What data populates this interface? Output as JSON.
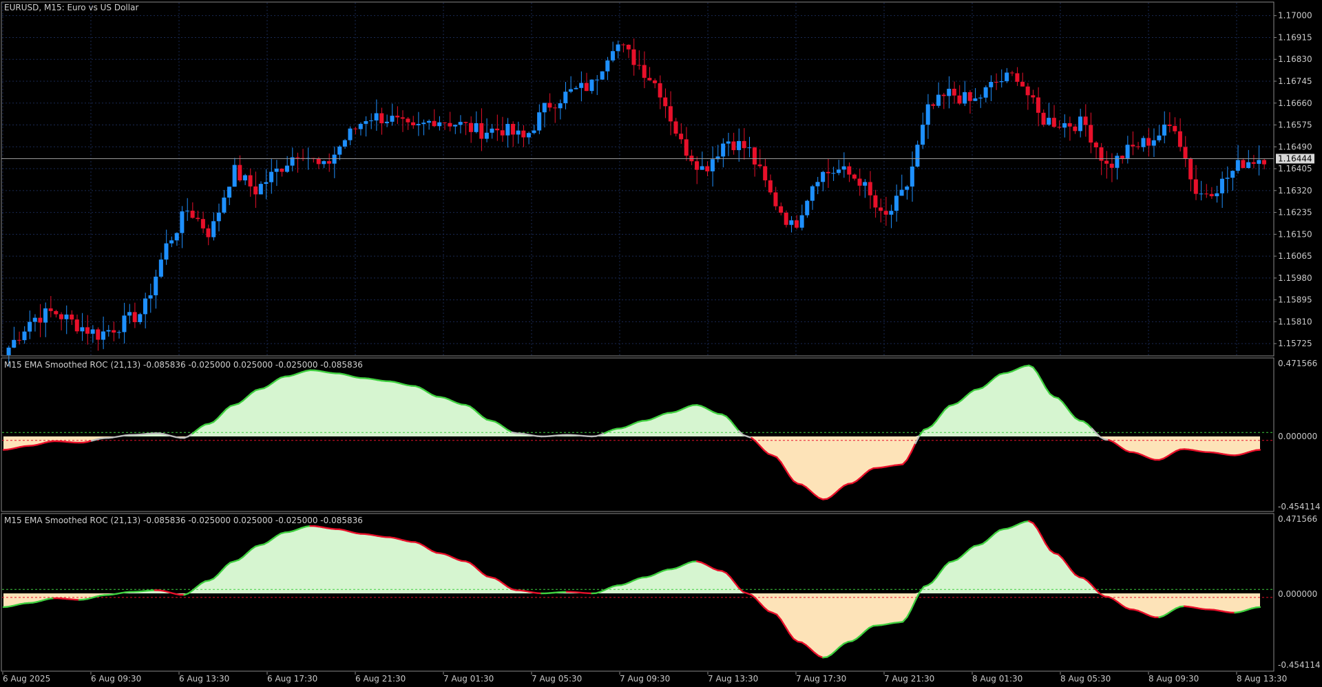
{
  "main_chart": {
    "title": "EURUSD, M15:  Euro vs US Dollar",
    "current_price": "1.16444",
    "price_ticks": [
      "1.17000",
      "1.16915",
      "1.16830",
      "1.16745",
      "1.16660",
      "1.16575",
      "1.16490",
      "1.16405",
      "1.16320",
      "1.16235",
      "1.16150",
      "1.16065",
      "1.15980",
      "1.15895",
      "1.15810",
      "1.15725"
    ]
  },
  "indicator_1": {
    "title": "M15 EMA Smoothed ROC (21,13) -0.085836 -0.025000 0.025000 -0.025000 -0.085836",
    "ticks": [
      "0.471566",
      "0.000000",
      "-0.454114"
    ]
  },
  "indicator_2": {
    "title": "M15 EMA Smoothed ROC (21,13) -0.085836 -0.025000 0.025000 -0.025000 -0.085836",
    "ticks": [
      "0.471566",
      "0.000000",
      "-0.454114"
    ]
  },
  "time_axis": [
    "6 Aug 2025",
    "6 Aug 09:30",
    "6 Aug 13:30",
    "6 Aug 17:30",
    "6 Aug 21:30",
    "7 Aug 01:30",
    "7 Aug 05:30",
    "7 Aug 09:30",
    "7 Aug 13:30",
    "7 Aug 17:30",
    "7 Aug 21:30",
    "8 Aug 01:30",
    "8 Aug 05:30",
    "8 Aug 09:30",
    "8 Aug 13:30"
  ],
  "colors": {
    "bull": "#1e90ff",
    "bear": "#e8102a",
    "up_line": "#3fcf3f",
    "down_line": "#e8102a",
    "neutral_line": "#bbbbbb",
    "pos_fill": "#d6f5d0",
    "neg_fill": "#fde3b8",
    "border": "#8a8a8a",
    "grid": "#1a2a55"
  },
  "chart_data": [
    {
      "type": "candlestick",
      "title": "EURUSD, M15:  Euro vs US Dollar",
      "ylim": [
        1.1568,
        1.1705
      ],
      "x_labels": [
        "6 Aug 2025",
        "6 Aug 09:30",
        "6 Aug 13:30",
        "6 Aug 17:30",
        "6 Aug 21:30",
        "7 Aug 01:30",
        "7 Aug 05:30",
        "7 Aug 09:30",
        "7 Aug 13:30",
        "7 Aug 17:30",
        "7 Aug 21:30",
        "8 Aug 01:30",
        "8 Aug 05:30",
        "8 Aug 09:30",
        "8 Aug 13:30"
      ],
      "close_anchors": [
        1.1571,
        1.1582,
        1.1585,
        1.158,
        1.1576,
        1.158,
        1.1585,
        1.161,
        1.1625,
        1.1615,
        1.164,
        1.1632,
        1.164,
        1.1648,
        1.164,
        1.1652,
        1.1661,
        1.166,
        1.1655,
        1.166,
        1.1658,
        1.1655,
        1.1656,
        1.1652,
        1.1665,
        1.167,
        1.1673,
        1.169,
        1.1682,
        1.1672,
        1.165,
        1.164,
        1.1652,
        1.1648,
        1.163,
        1.1617,
        1.1638,
        1.164,
        1.1636,
        1.162,
        1.1632,
        1.1663,
        1.167,
        1.1666,
        1.1674,
        1.1677,
        1.166,
        1.1658,
        1.1658,
        1.1641,
        1.1648,
        1.1652,
        1.1658,
        1.163,
        1.1634,
        1.1643,
        1.1645
      ],
      "current_price": 1.16444
    },
    {
      "type": "area",
      "title": "M15 EMA Smoothed ROC (21,13) -0.085836 -0.025000 0.025000 -0.025000 -0.085836",
      "ylim": [
        -0.454114,
        0.471566
      ],
      "levels": [
        -0.085836,
        -0.025,
        0.025
      ],
      "values": [
        -0.085,
        -0.06,
        -0.03,
        -0.04,
        -0.01,
        0.01,
        0.02,
        -0.01,
        0.08,
        0.2,
        0.3,
        0.38,
        0.42,
        0.4,
        0.37,
        0.35,
        0.32,
        0.25,
        0.2,
        0.1,
        0.02,
        0.0,
        0.01,
        0.0,
        0.05,
        0.1,
        0.15,
        0.2,
        0.14,
        0.0,
        -0.12,
        -0.3,
        -0.4,
        -0.3,
        -0.2,
        -0.18,
        0.05,
        0.2,
        0.3,
        0.4,
        0.45,
        0.25,
        0.1,
        -0.02,
        -0.1,
        -0.15,
        -0.08,
        -0.1,
        -0.12,
        -0.085
      ]
    },
    {
      "type": "area",
      "title": "M15 EMA Smoothed ROC (21,13) -0.085836 -0.025000 0.025000 -0.025000 -0.085836",
      "ylim": [
        -0.454114,
        0.471566
      ],
      "levels": [
        -0.085836,
        -0.025,
        0.025
      ],
      "values": [
        -0.085,
        -0.06,
        -0.03,
        -0.04,
        -0.01,
        0.01,
        0.02,
        -0.01,
        0.08,
        0.2,
        0.3,
        0.38,
        0.42,
        0.4,
        0.37,
        0.35,
        0.32,
        0.25,
        0.2,
        0.1,
        0.02,
        0.0,
        0.01,
        0.0,
        0.05,
        0.1,
        0.15,
        0.2,
        0.14,
        0.0,
        -0.12,
        -0.3,
        -0.4,
        -0.3,
        -0.2,
        -0.18,
        0.05,
        0.2,
        0.3,
        0.4,
        0.45,
        0.25,
        0.1,
        -0.02,
        -0.1,
        -0.15,
        -0.08,
        -0.1,
        -0.12,
        -0.085
      ]
    }
  ]
}
